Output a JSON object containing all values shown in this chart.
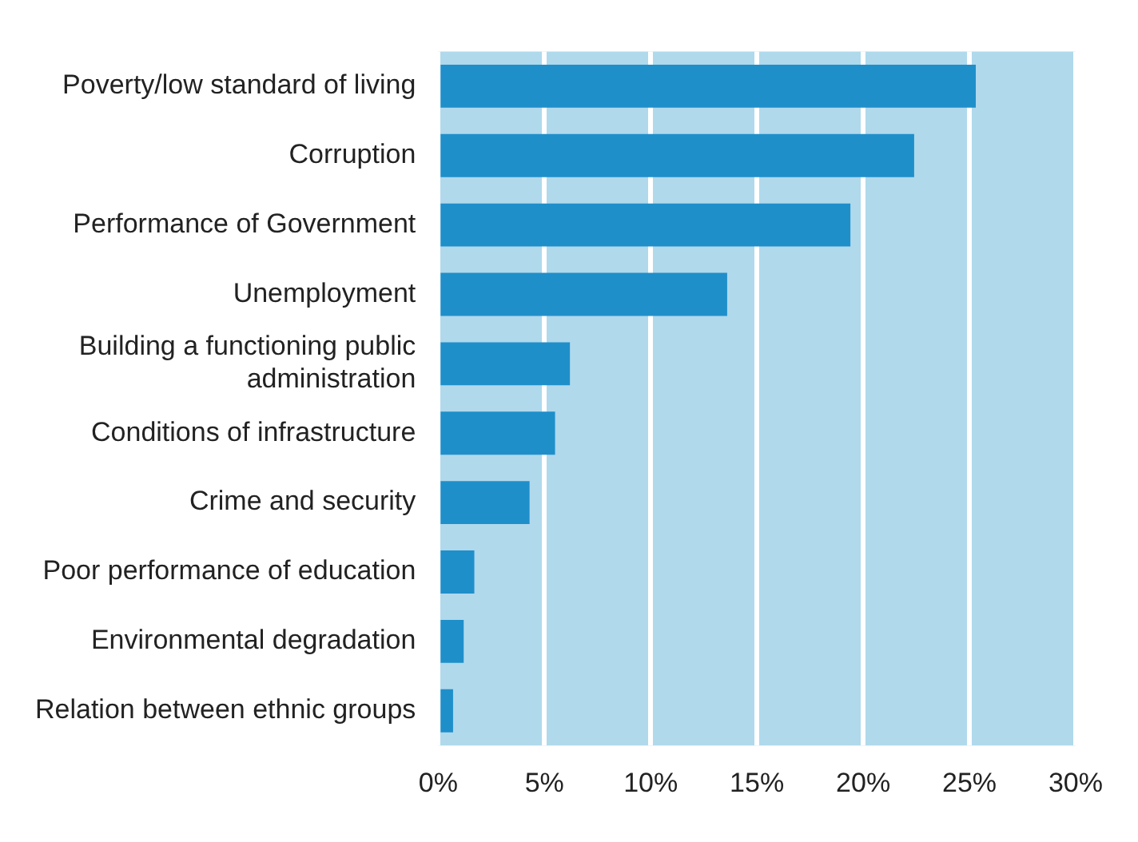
{
  "chart_data": {
    "type": "bar",
    "orientation": "horizontal",
    "categories": [
      "Poverty/low standard of living",
      "Corruption",
      "Performance of Government",
      "Unemployment",
      "Building a functioning public administration",
      "Conditions of infrastructure",
      "Crime and security",
      "Poor performance of education",
      "Environmental degradation",
      "Relation between ethnic groups"
    ],
    "values": [
      25.3,
      22.4,
      19.4,
      13.6,
      6.2,
      5.5,
      4.3,
      1.7,
      1.2,
      0.7
    ],
    "color": "#1f8fca",
    "xlim": [
      0,
      30
    ],
    "xticks": [
      {
        "value": 0,
        "label": "0%"
      },
      {
        "value": 5,
        "label": "5%"
      },
      {
        "value": 10,
        "label": "10%"
      },
      {
        "value": 15,
        "label": "15%"
      },
      {
        "value": 20,
        "label": "20%"
      },
      {
        "value": 25,
        "label": "25%"
      },
      {
        "value": 30,
        "label": "30%"
      }
    ],
    "grid": "x",
    "legend": false
  }
}
